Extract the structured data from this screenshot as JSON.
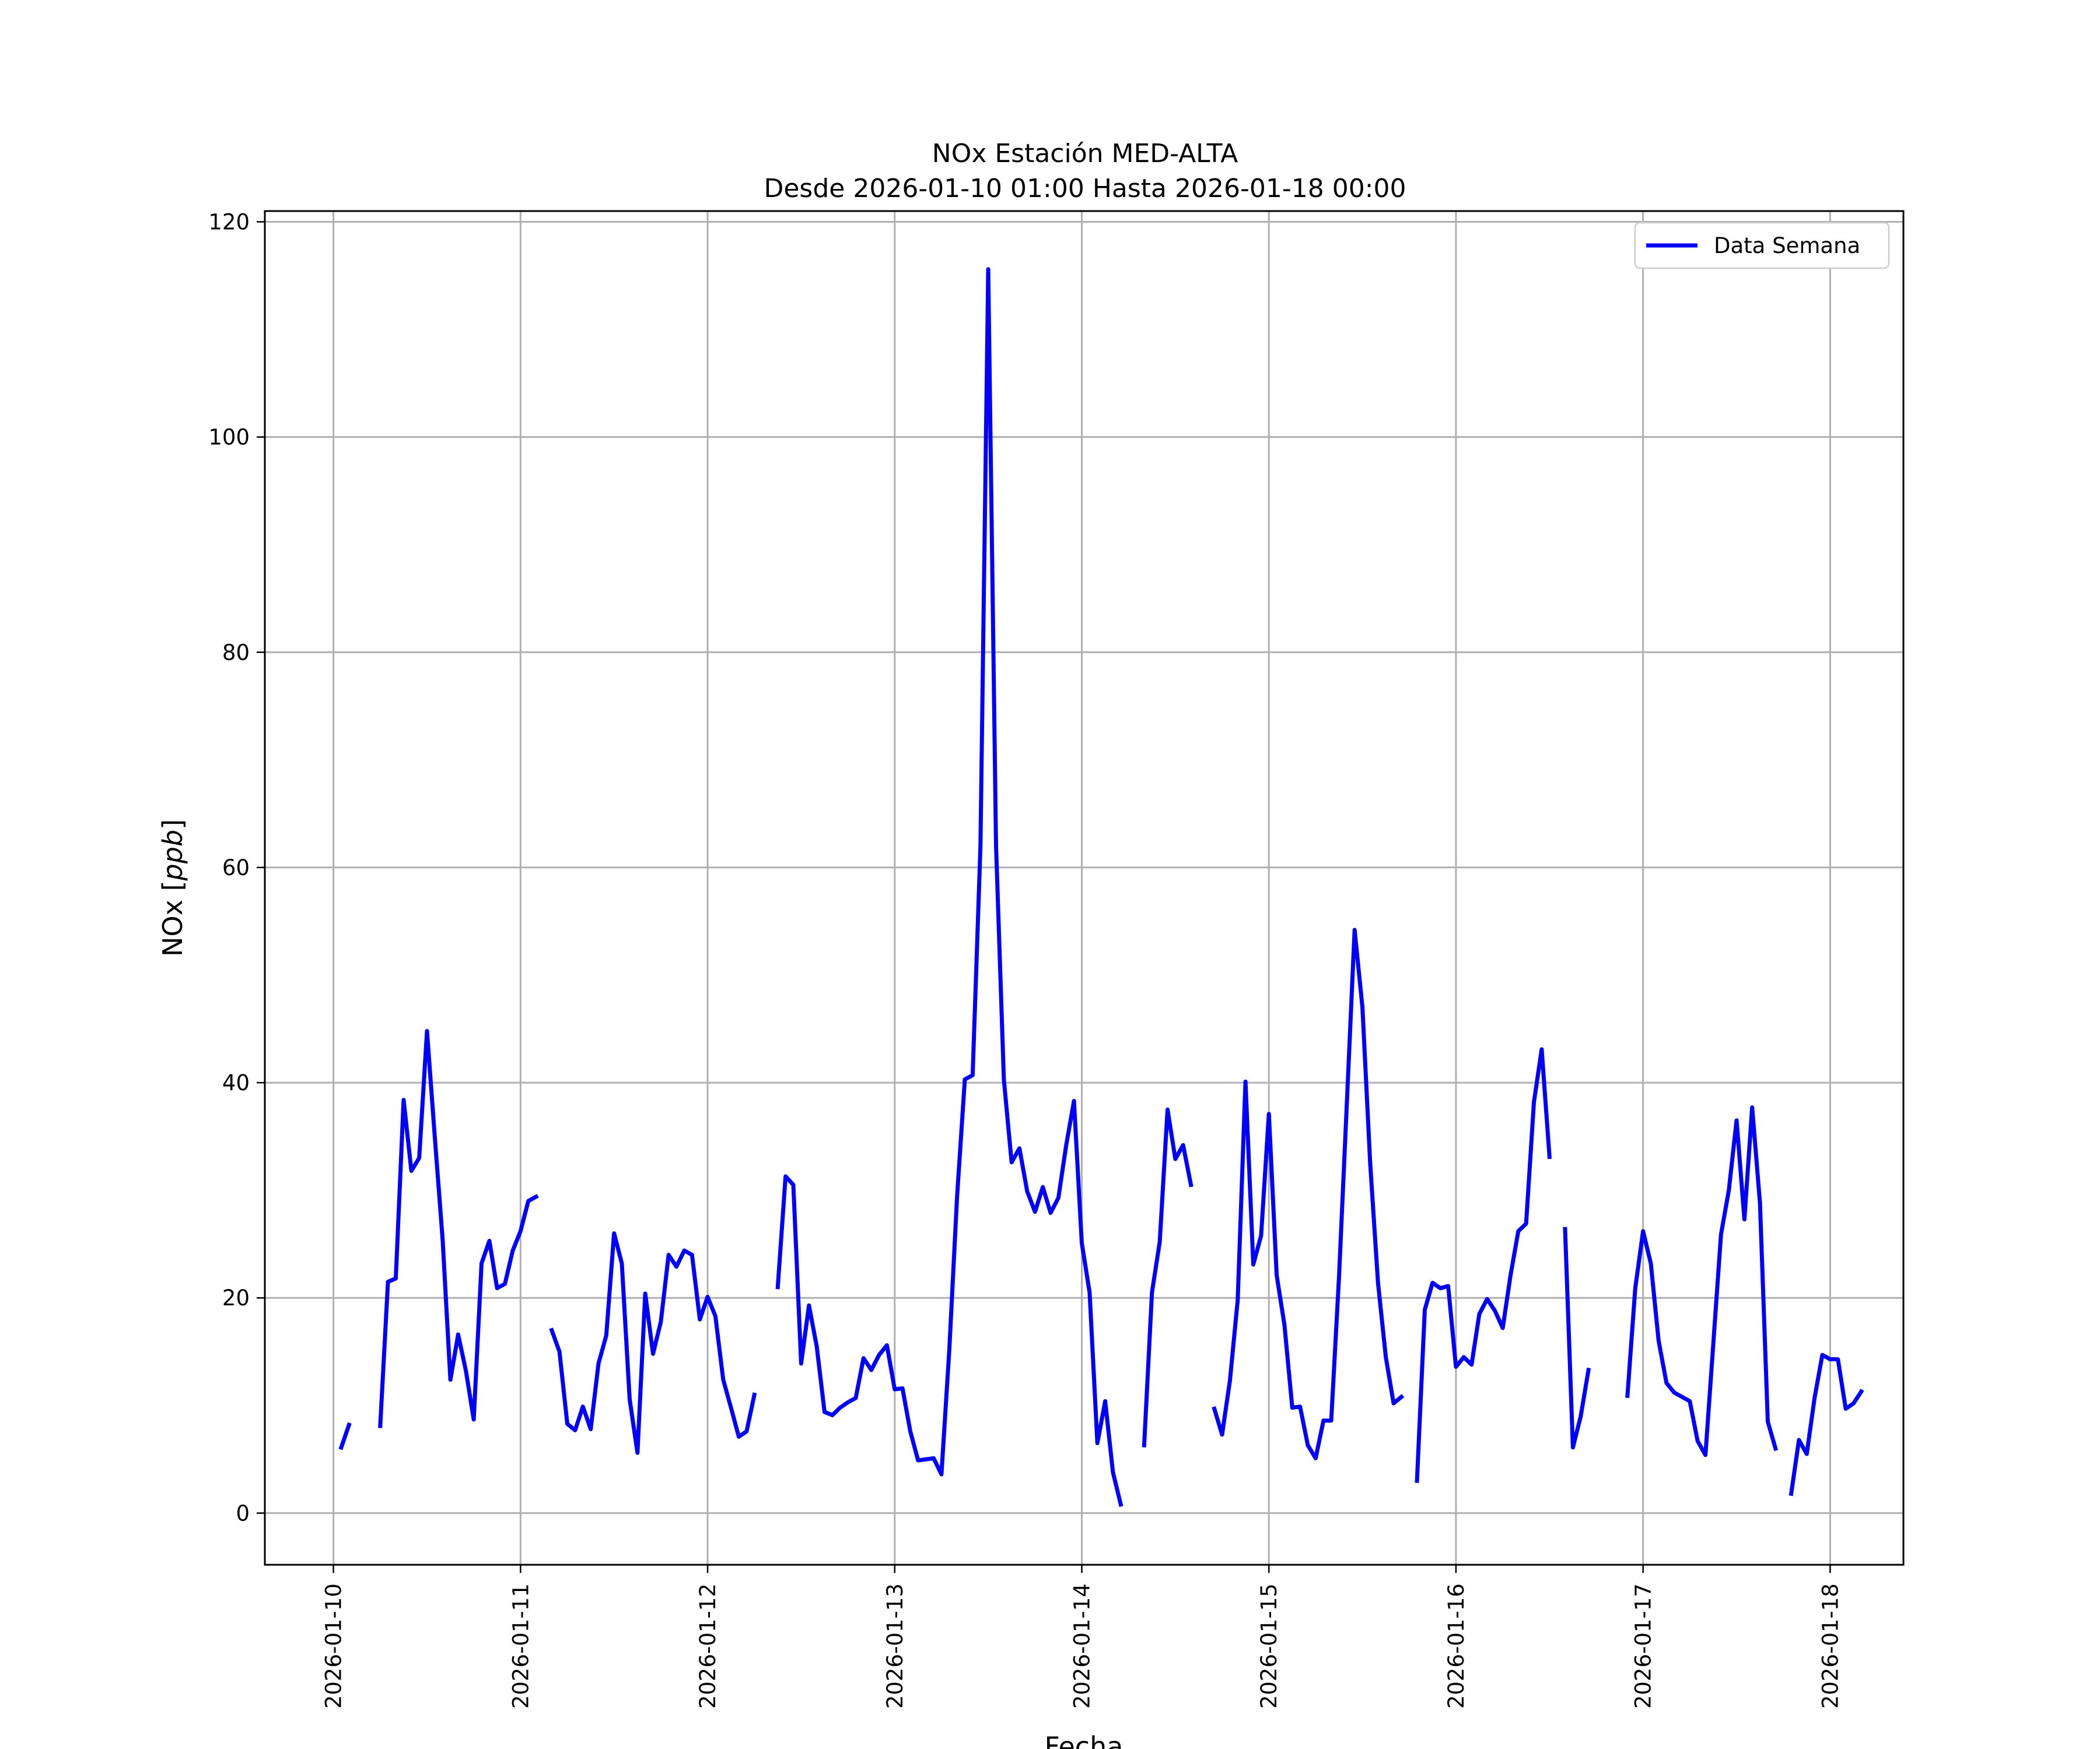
{
  "chart_data": {
    "type": "line",
    "title": "NOx Estación MED-ALTA",
    "subtitle": "Desde 2026-01-10 01:00 Hasta 2026-01-18 00:00",
    "xlabel": "Fecha",
    "ylabel": "NOx [ppb]",
    "xlim": [
      "2026-01-09 15:12",
      "2026-01-18 09:24"
    ],
    "ylim": [
      -4.8,
      121.0
    ],
    "x_tick_labels": [
      "2026-01-10",
      "2026-01-11",
      "2026-01-12",
      "2026-01-13",
      "2026-01-14",
      "2026-01-15",
      "2026-01-16",
      "2026-01-17",
      "2026-01-18"
    ],
    "y_tick_values": [
      0,
      20,
      40,
      60,
      80,
      100,
      120
    ],
    "y_tick_labels": [
      "0",
      "20",
      "40",
      "60",
      "80",
      "100",
      "120"
    ],
    "grid": true,
    "legend_position": "top-right",
    "series": [
      {
        "name": "Data Semana",
        "color": "#0000ff",
        "x_start": "2026-01-10 01:00",
        "step": "1 hour",
        "values": [
          6.1,
          8.2,
          null,
          null,
          null,
          8.1,
          21.5,
          21.8,
          38.4,
          31.8,
          33.0,
          44.8,
          35.0,
          25.5,
          12.4,
          16.6,
          13.2,
          8.7,
          23.2,
          25.3,
          20.9,
          21.3,
          24.4,
          26.2,
          29.0,
          29.4,
          null,
          17.0,
          15.0,
          8.3,
          7.7,
          9.9,
          7.8,
          13.9,
          16.5,
          26.0,
          23.2,
          10.6,
          5.6,
          20.4,
          14.8,
          17.8,
          24.0,
          22.9,
          24.4,
          24.0,
          18.0,
          20.1,
          18.3,
          12.4,
          9.8,
          7.1,
          7.6,
          11.0,
          null,
          null,
          21.0,
          31.3,
          30.5,
          13.9,
          19.3,
          15.5,
          9.4,
          9.1,
          9.8,
          10.3,
          10.7,
          14.4,
          13.3,
          14.7,
          15.6,
          11.5,
          11.6,
          7.6,
          4.9,
          5.0,
          5.1,
          3.6,
          15.1,
          29.4,
          40.3,
          40.7,
          62.0,
          115.6,
          62.0,
          40.3,
          32.6,
          33.9,
          29.9,
          28.0,
          30.3,
          27.9,
          29.3,
          34.2,
          38.3,
          25.1,
          20.5,
          6.5,
          10.4,
          3.8,
          0.8,
          null,
          null,
          6.3,
          20.5,
          25.2,
          37.5,
          32.9,
          34.2,
          30.5,
          null,
          null,
          9.7,
          7.3,
          12.3,
          19.8,
          40.1,
          23.1,
          25.8,
          37.1,
          22.1,
          17.5,
          9.8,
          9.9,
          6.3,
          5.1,
          8.6,
          8.6,
          22.0,
          38.0,
          54.2,
          47.0,
          32.5,
          21.4,
          14.5,
          10.2,
          10.8,
          null,
          3.0,
          18.9,
          21.4,
          20.9,
          21.1,
          13.6,
          14.5,
          13.8,
          18.5,
          19.9,
          18.8,
          17.2,
          22.1,
          26.2,
          26.9,
          38.2,
          43.1,
          33.1,
          null,
          26.4,
          6.1,
          9.0,
          13.3,
          null,
          null,
          null,
          null,
          10.9,
          20.9,
          26.2,
          23.2,
          16.0,
          12.1,
          11.2,
          10.8,
          10.4,
          6.7,
          5.4,
          15.6,
          25.9,
          30.0,
          36.5,
          27.3,
          37.7,
          28.8,
          8.5,
          6.0,
          null,
          1.8,
          6.8,
          5.5,
          10.7,
          14.7,
          14.3,
          14.3,
          9.7,
          10.2,
          11.3
        ]
      }
    ]
  }
}
